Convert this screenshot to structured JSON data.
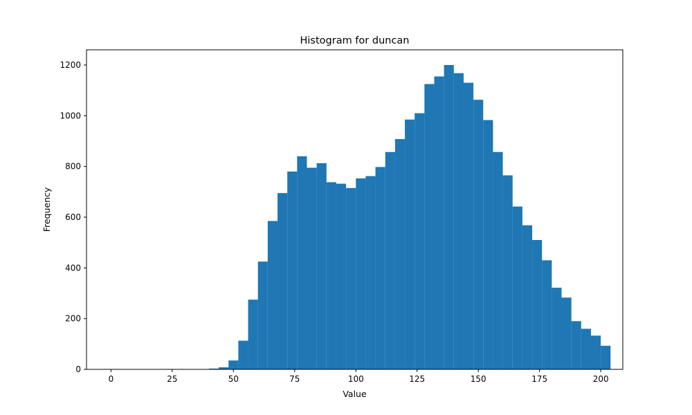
{
  "chart_data": {
    "type": "bar",
    "title": "Histogram for duncan",
    "xlabel": "Value",
    "ylabel": "Frequency",
    "xlim": [
      -10,
      209
    ],
    "ylim": [
      0,
      1260
    ],
    "bin_width": 4,
    "bin_edges_start": 0,
    "values": [
      0,
      0,
      0,
      0,
      0,
      0,
      0,
      0,
      0,
      0,
      3,
      8,
      35,
      113,
      275,
      425,
      585,
      695,
      780,
      840,
      795,
      813,
      738,
      732,
      715,
      753,
      762,
      798,
      857,
      908,
      985,
      1010,
      1125,
      1155,
      1200,
      1168,
      1130,
      1063,
      983,
      857,
      765,
      642,
      568,
      510,
      430,
      322,
      283,
      190,
      160,
      133,
      93
    ],
    "xticks": [
      0,
      25,
      50,
      75,
      100,
      125,
      150,
      175,
      200
    ],
    "yticks": [
      0,
      200,
      400,
      600,
      800,
      1000,
      1200
    ],
    "grid": false,
    "bar_color": "#1f77b4"
  }
}
